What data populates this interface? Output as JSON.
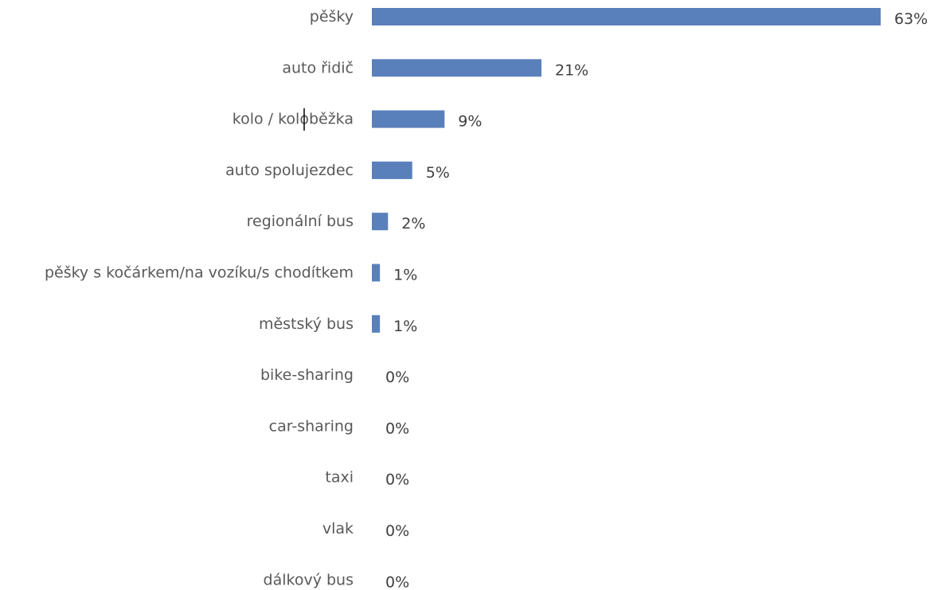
{
  "chart_data": {
    "type": "bar",
    "orientation": "horizontal",
    "categories": [
      "pěšky",
      "auto řidič",
      "kolo / koloběžka",
      "auto spolujezdec",
      "regionální bus",
      "pěšky s kočárkem/na vozíku/s chodítkem",
      "městský bus",
      "bike-sharing",
      "car-sharing",
      "taxi",
      "vlak",
      "dálkový bus"
    ],
    "values": [
      63,
      21,
      9,
      5,
      2,
      1,
      1,
      0,
      0,
      0,
      0,
      0
    ],
    "data_labels": [
      "63%",
      "21%",
      "9%",
      "5%",
      "2%",
      "1%",
      "1%",
      "0%",
      "0%",
      "0%",
      "0%",
      "0%"
    ],
    "value_unit": "%",
    "title": "",
    "xlabel": "",
    "ylabel": "",
    "xlim": [
      0,
      63
    ],
    "grid": false,
    "legend": "none",
    "colors": {
      "bar": "#5a80bb",
      "category_text": "#595959",
      "value_text": "#404040"
    }
  }
}
